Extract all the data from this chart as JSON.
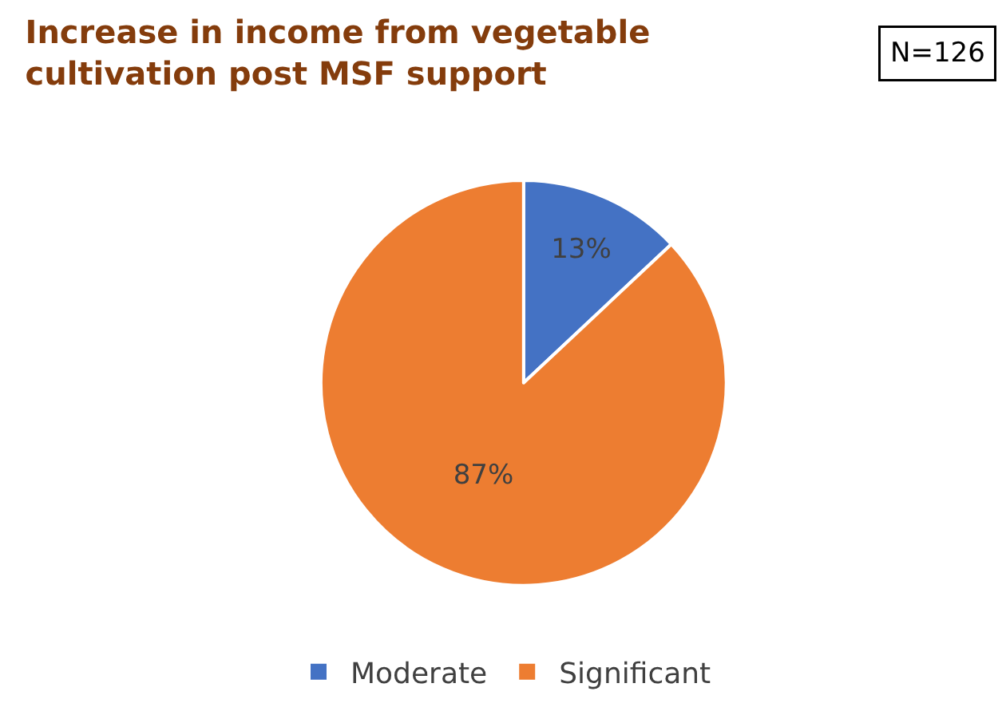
{
  "chart_data": {
    "type": "pie",
    "title": "Increase in income from vegetable cultivation post MSF support",
    "categories": [
      "Moderate",
      "Significant"
    ],
    "values": [
      13,
      87
    ],
    "colors": [
      "#4472c4",
      "#ed7d31"
    ],
    "value_labels": [
      "13%",
      "87%"
    ],
    "legend": "bottom",
    "annotations": [
      "N=126"
    ]
  }
}
